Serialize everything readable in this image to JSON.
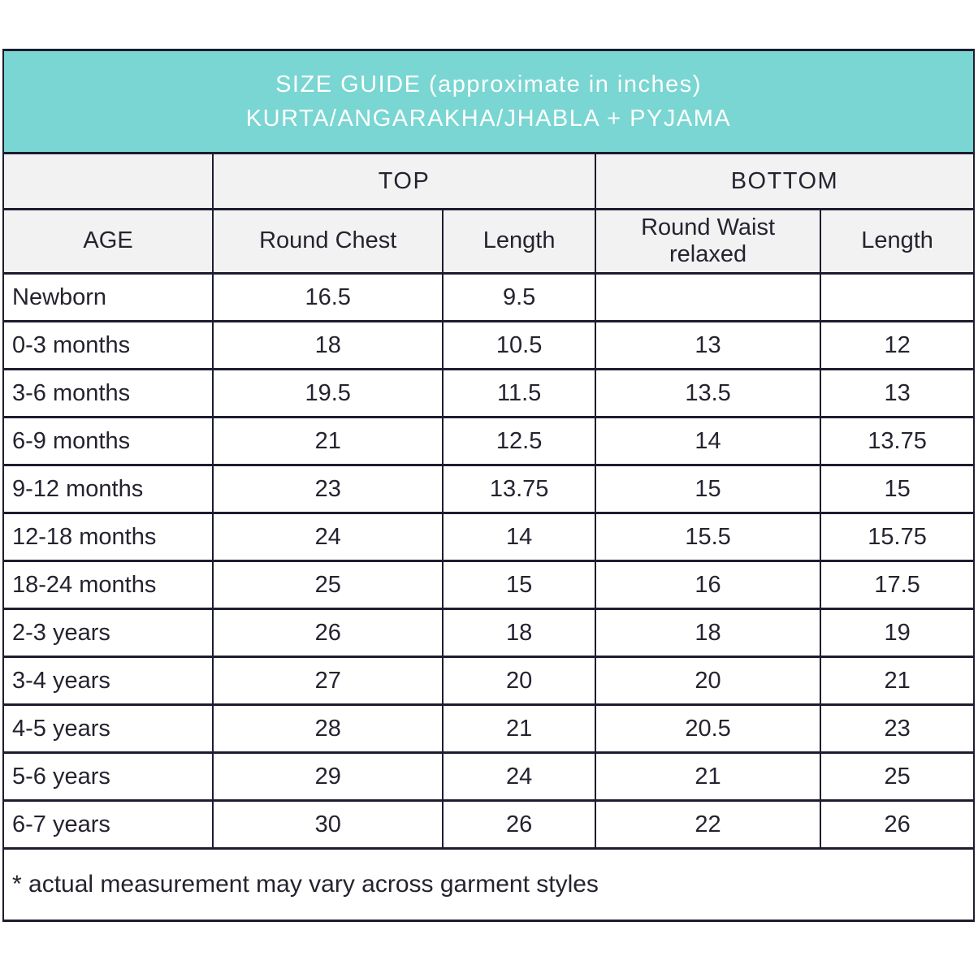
{
  "title": {
    "line1": "SIZE GUIDE (approximate in inches)",
    "line2": "KURTA/ANGARAKHA/JHABLA + PYJAMA"
  },
  "table": {
    "group_headers": {
      "top": "TOP",
      "bottom": "BOTTOM"
    },
    "column_headers": [
      "AGE",
      "Round Chest",
      "Length",
      "Round Waist relaxed",
      "Length"
    ],
    "rows": [
      [
        "Newborn",
        "16.5",
        "9.5",
        "",
        ""
      ],
      [
        "0-3 months",
        "18",
        "10.5",
        "13",
        "12"
      ],
      [
        "3-6 months",
        "19.5",
        "11.5",
        "13.5",
        "13"
      ],
      [
        "6-9 months",
        "21",
        "12.5",
        "14",
        "13.75"
      ],
      [
        "9-12 months",
        "23",
        "13.75",
        "15",
        "15"
      ],
      [
        "12-18 months",
        "24",
        "14",
        "15.5",
        "15.75"
      ],
      [
        "18-24 months",
        "25",
        "15",
        "16",
        "17.5"
      ],
      [
        "2-3 years",
        "26",
        "18",
        "18",
        "19"
      ],
      [
        "3-4 years",
        "27",
        "20",
        "20",
        "21"
      ],
      [
        "4-5 years",
        "28",
        "21",
        "20.5",
        "23"
      ],
      [
        "5-6 years",
        "29",
        "24",
        "21",
        "25"
      ],
      [
        "6-7 years",
        "30",
        "26",
        "22",
        "26"
      ]
    ]
  },
  "footnote": "* actual measurement may vary across garment styles",
  "colors": {
    "header_teal": "#79d6d2",
    "header_gray": "#f2f2f2",
    "border": "#1d1d30"
  }
}
